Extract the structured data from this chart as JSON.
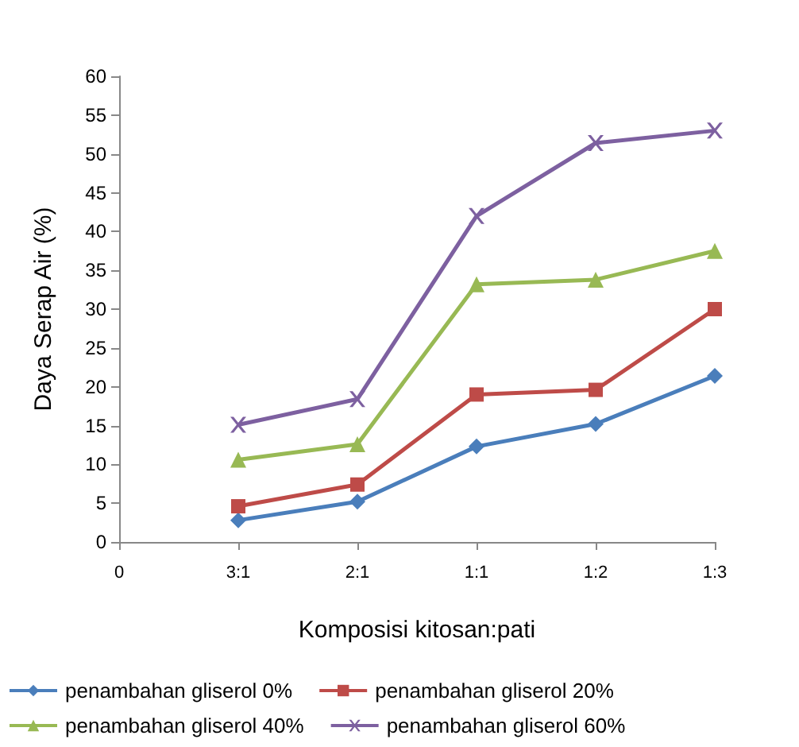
{
  "chart_data": {
    "type": "line",
    "xlabel": "Komposisi kitosan:pati",
    "ylabel": "Daya Serap Air (%)",
    "categories": [
      "0",
      "3:1",
      "2:1",
      "1:1",
      "1:2",
      "1:3"
    ],
    "ylim": [
      0,
      60
    ],
    "yticks": [
      0,
      5,
      10,
      15,
      20,
      25,
      30,
      35,
      40,
      45,
      50,
      55,
      60
    ],
    "grid": false,
    "legend": "bottom",
    "line_style": "solid",
    "series": [
      {
        "name": "penambahan gliserol 0%",
        "color": "#4a7ebb",
        "marker": "diamond",
        "values": [
          null,
          2.8,
          5.2,
          12.3,
          15.2,
          21.4
        ]
      },
      {
        "name": "penambahan gliserol 20%",
        "color": "#be4b48",
        "marker": "square",
        "values": [
          null,
          4.6,
          7.4,
          19,
          19.6,
          30
        ]
      },
      {
        "name": "penambahan gliserol 40%",
        "color": "#98b954",
        "marker": "triangle",
        "values": [
          null,
          10.6,
          12.6,
          33.2,
          33.8,
          37.5
        ]
      },
      {
        "name": "penambahan gliserol 60%",
        "color": "#7d60a0",
        "marker": "cross",
        "values": [
          null,
          15.1,
          18.4,
          42,
          51.4,
          53
        ]
      }
    ]
  }
}
